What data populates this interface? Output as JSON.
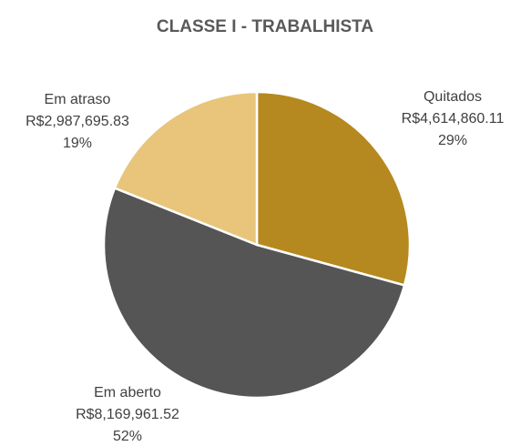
{
  "chart_data": {
    "type": "pie",
    "title": "CLASSE I - TRABALHISTA",
    "categories": [
      "Quitados",
      "Em aberto",
      "Em atraso"
    ],
    "values": [
      4614860.11,
      8169961.52,
      2987695.83
    ],
    "value_labels": [
      "R$4,614,860.11",
      "R$8,169,961.52",
      "R$2,987,695.83"
    ],
    "percent_labels": [
      "29%",
      "52%",
      "19%"
    ],
    "colors": [
      "#B5891F",
      "#555555",
      "#E8C57A"
    ]
  }
}
